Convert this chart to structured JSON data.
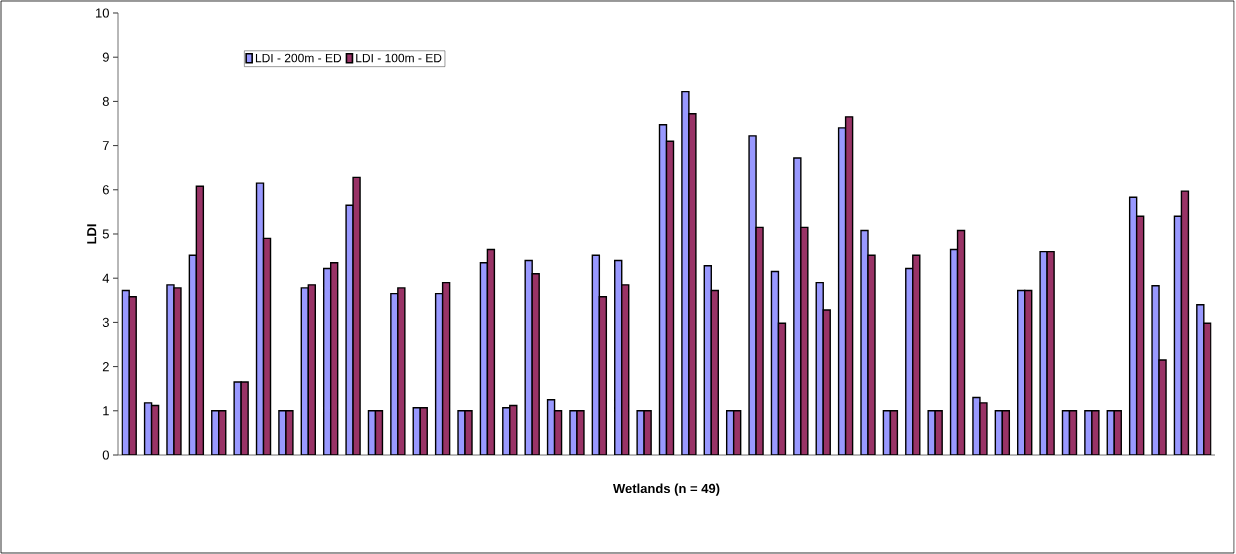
{
  "chart_data": {
    "type": "bar",
    "xlabel": "Wetlands (n = 49)",
    "ylabel": "LDI",
    "categories": [
      null,
      null,
      null,
      null,
      null,
      null,
      null,
      null,
      null,
      null,
      null,
      null,
      null,
      null,
      null,
      null,
      null,
      null,
      null,
      null,
      null,
      null,
      null,
      null,
      null,
      null,
      null,
      null,
      null,
      null,
      null,
      null,
      null,
      null,
      null,
      null,
      null,
      null,
      null,
      null,
      null,
      null,
      null,
      null,
      null,
      null,
      null,
      null,
      null
    ],
    "series": [
      {
        "name": "LDI - 200m - ED",
        "color": "#9999ff",
        "values": [
          3.72,
          1.18,
          3.85,
          4.52,
          1,
          1.65,
          6.15,
          1,
          3.78,
          4.22,
          5.65,
          1,
          3.65,
          1.07,
          3.65,
          1,
          4.35,
          1.07,
          4.4,
          1.25,
          1,
          4.52,
          4.4,
          1,
          7.47,
          8.22,
          4.28,
          1,
          7.22,
          4.15,
          6.72,
          3.9,
          7.4,
          5.08,
          1,
          4.22,
          1,
          4.65,
          1.3,
          1,
          3.72,
          4.6,
          1,
          1,
          1,
          5.83,
          3.83,
          5.4,
          3.4
        ]
      },
      {
        "name": "LDI - 100m - ED",
        "color": "#993366",
        "values": [
          3.58,
          1.12,
          3.78,
          6.08,
          1,
          1.65,
          4.9,
          1,
          3.85,
          4.35,
          6.28,
          1,
          3.78,
          1.07,
          3.9,
          1,
          4.65,
          1.12,
          4.1,
          1,
          1,
          3.58,
          3.85,
          1,
          7.1,
          7.72,
          3.72,
          1,
          5.15,
          2.98,
          5.15,
          3.28,
          7.65,
          4.52,
          1,
          4.52,
          1,
          5.08,
          1.18,
          1,
          3.72,
          4.6,
          1,
          1,
          1,
          5.4,
          2.15,
          5.97,
          2.98
        ]
      }
    ],
    "ylim": [
      0,
      10
    ],
    "yticks": [
      0,
      1,
      2,
      3,
      4,
      5,
      6,
      7,
      8,
      9,
      10
    ],
    "grid": false,
    "legend": "top left"
  }
}
